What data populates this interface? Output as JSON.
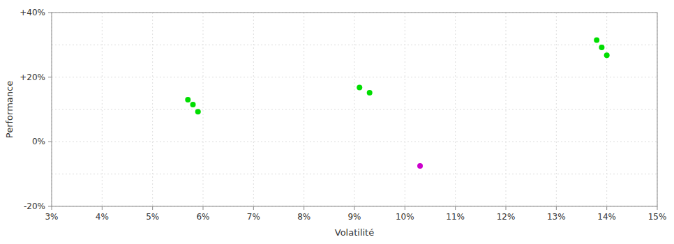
{
  "chart_data": {
    "type": "scatter",
    "xlabel": "Volatilité",
    "ylabel": "Performance",
    "xlim": [
      0.03,
      0.15
    ],
    "ylim": [
      -0.2,
      0.4
    ],
    "xticks": [
      {
        "value": 0.03,
        "label": "3%"
      },
      {
        "value": 0.04,
        "label": "4%"
      },
      {
        "value": 0.05,
        "label": "5%"
      },
      {
        "value": 0.06,
        "label": "6%"
      },
      {
        "value": 0.07,
        "label": "7%"
      },
      {
        "value": 0.08,
        "label": "8%"
      },
      {
        "value": 0.09,
        "label": "9%"
      },
      {
        "value": 0.1,
        "label": "10%"
      },
      {
        "value": 0.11,
        "label": "11%"
      },
      {
        "value": 0.12,
        "label": "12%"
      },
      {
        "value": 0.13,
        "label": "13%"
      },
      {
        "value": 0.14,
        "label": "14%"
      },
      {
        "value": 0.15,
        "label": "15%"
      }
    ],
    "yticks": [
      {
        "value": -0.2,
        "label": "-20%"
      },
      {
        "value": -0.1,
        "label": null
      },
      {
        "value": 0.0,
        "label": "0%"
      },
      {
        "value": 0.1,
        "label": null
      },
      {
        "value": 0.2,
        "label": "+20%"
      },
      {
        "value": 0.3,
        "label": null
      },
      {
        "value": 0.4,
        "label": "+40%"
      }
    ],
    "grid": true,
    "series": [
      {
        "color": "#00dd00",
        "x": [
          0.057,
          0.058,
          0.059,
          0.091,
          0.093,
          0.138,
          0.139,
          0.14
        ],
        "values": [
          0.13,
          0.115,
          0.093,
          0.168,
          0.152,
          0.315,
          0.292,
          0.268
        ]
      },
      {
        "color": "#cc00cc",
        "x": [
          0.103
        ],
        "values": [
          -0.075
        ]
      }
    ]
  }
}
